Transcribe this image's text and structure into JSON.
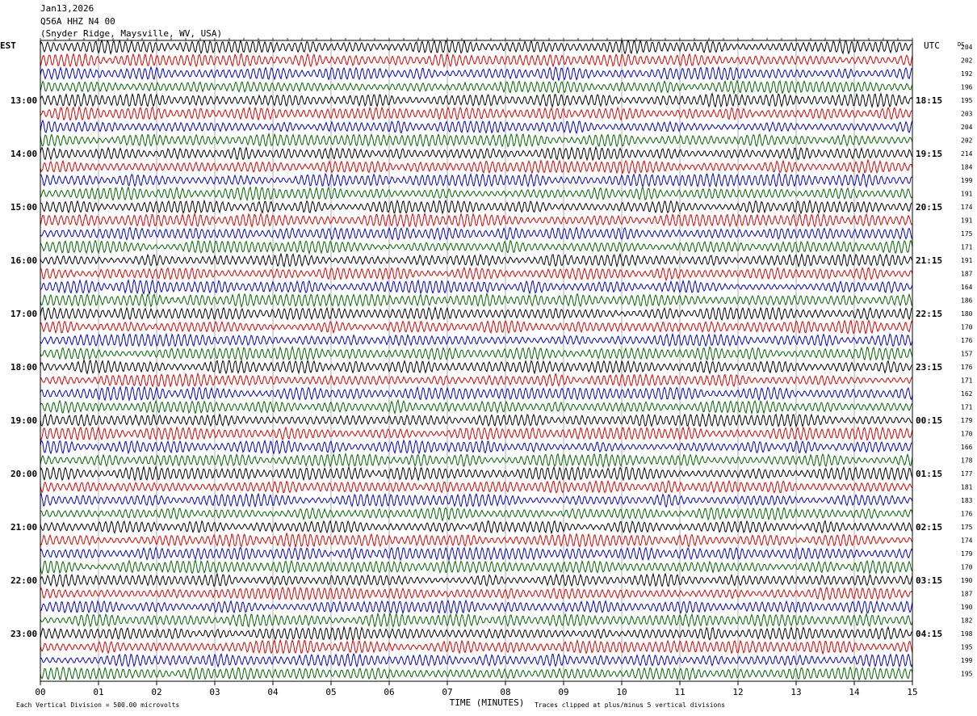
{
  "header": {
    "date": "Jan13,2026",
    "station": "Q56A HHZ N4 00",
    "location": "(Snyder Ridge, Maysville, WV, USA)"
  },
  "left_axis_label": "EST",
  "right_axis_label": "UTC",
  "dc_label": "DC",
  "chart_data": {
    "type": "line",
    "title": "",
    "xlabel": "TIME (MINUTES)",
    "ylabel": "",
    "x_ticks": [
      "00",
      "01",
      "02",
      "03",
      "04",
      "05",
      "06",
      "07",
      "08",
      "09",
      "10",
      "11",
      "12",
      "13",
      "14",
      "15"
    ],
    "xlim": [
      0,
      15
    ],
    "grid": "vertical",
    "left_time_labels": [
      "13:00",
      "14:00",
      "15:00",
      "16:00",
      "17:00",
      "18:00",
      "19:00",
      "20:00",
      "21:00",
      "22:00",
      "23:00"
    ],
    "right_time_labels": [
      "18:15",
      "19:15",
      "20:15",
      "21:15",
      "22:15",
      "23:15",
      "00:15",
      "01:15",
      "02:15",
      "03:15",
      "04:15"
    ],
    "first_label_trace_index": 4,
    "traces_per_label": 4,
    "trace_colors": [
      "#000000",
      "#dd0000",
      "#0000cc",
      "#006600"
    ],
    "dc_offsets": [
      204,
      202,
      192,
      196,
      195,
      203,
      204,
      202,
      214,
      184,
      199,
      191,
      174,
      191,
      175,
      171,
      191,
      187,
      164,
      186,
      180,
      170,
      176,
      157,
      176,
      171,
      162,
      171,
      179,
      170,
      166,
      178,
      177,
      181,
      183,
      176,
      175,
      174,
      179,
      170,
      190,
      187,
      190,
      182,
      198,
      195,
      199,
      195
    ],
    "footer_left": "Each Vertical Division =  500.00 microvolts",
    "footer_right": "Traces clipped at plus/minus 5 vertical divisions"
  }
}
